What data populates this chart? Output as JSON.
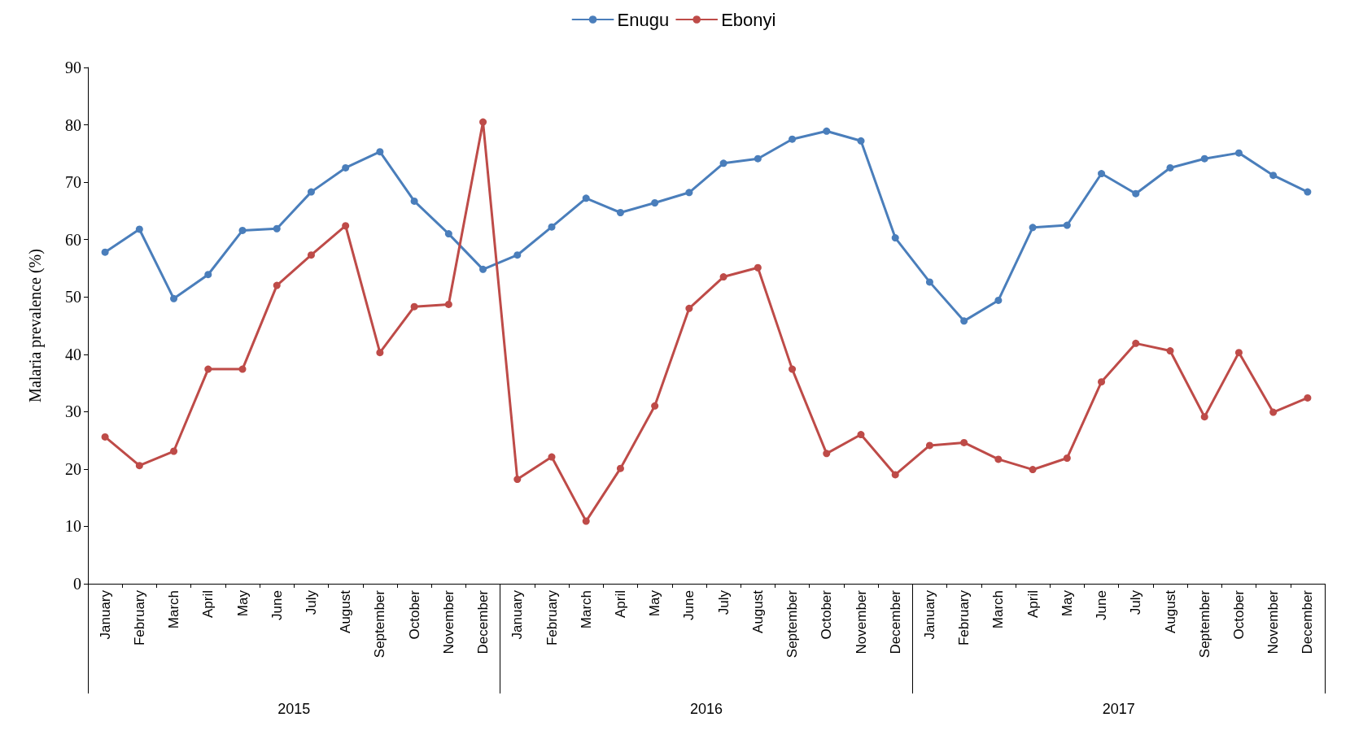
{
  "chart_data": {
    "type": "line",
    "ylabel": "Malaria prevalence (%)",
    "categories": [
      "January",
      "February",
      "March",
      "April",
      "May",
      "June",
      "July",
      "August",
      "September",
      "October",
      "November",
      "December",
      "January",
      "February",
      "March",
      "April",
      "May",
      "June",
      "July",
      "August",
      "September",
      "October",
      "November",
      "December",
      "January",
      "February",
      "March",
      "April",
      "May",
      "June",
      "July",
      "August",
      "September",
      "October",
      "November",
      "December"
    ],
    "series": [
      {
        "name": "Enugu",
        "color": "#4a7ebb",
        "values": [
          57.8,
          61.8,
          49.7,
          53.9,
          61.6,
          61.9,
          68.3,
          72.5,
          75.3,
          66.7,
          61.0,
          54.8,
          57.3,
          62.2,
          67.2,
          64.7,
          66.4,
          68.2,
          73.3,
          74.1,
          77.5,
          78.9,
          77.2,
          60.3,
          52.6,
          45.8,
          49.4,
          62.1,
          62.5,
          71.5,
          68.0,
          72.5,
          74.1,
          75.1,
          71.2,
          68.3
        ]
      },
      {
        "name": "Ebonyi",
        "color": "#be4b48",
        "values": [
          25.6,
          20.6,
          23.1,
          37.4,
          37.4,
          52.0,
          57.3,
          62.4,
          40.3,
          48.3,
          48.7,
          80.5,
          18.2,
          22.1,
          10.9,
          20.1,
          31.0,
          48.0,
          53.5,
          55.1,
          37.4,
          22.7,
          26.0,
          19.0,
          24.1,
          24.6,
          21.7,
          19.9,
          21.9,
          35.2,
          41.9,
          40.6,
          29.1,
          40.3,
          29.9,
          32.4
        ]
      }
    ],
    "annotations": [
      "2015",
      "2016",
      "2017"
    ],
    "ylim": [
      0,
      90
    ],
    "yticks": [
      0,
      10,
      20,
      30,
      40,
      50,
      60,
      70,
      80,
      90
    ],
    "grid": false,
    "legend": "top",
    "marker": "circle",
    "line_style": "solid"
  }
}
